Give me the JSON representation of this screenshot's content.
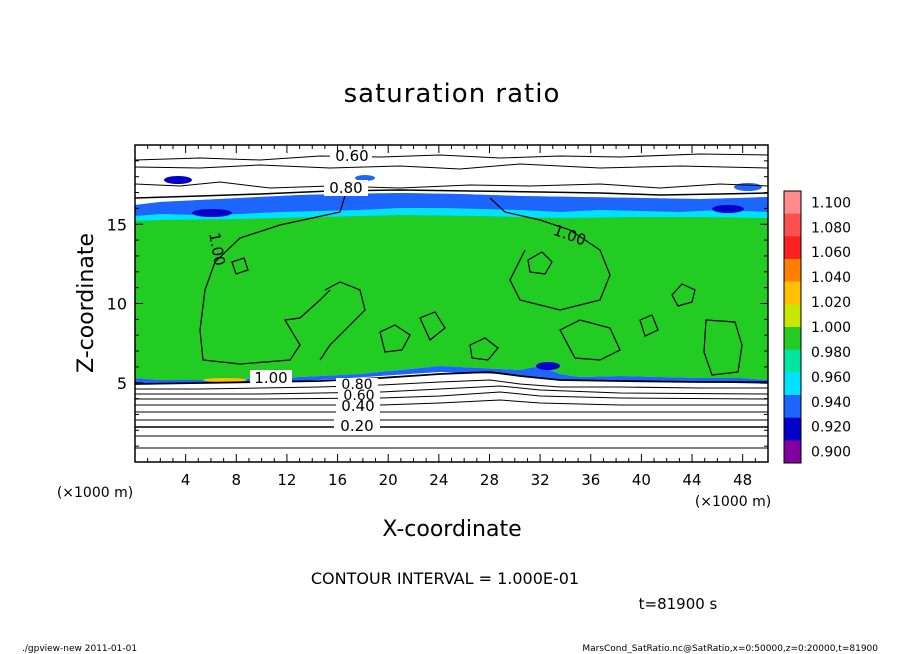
{
  "chart_data": {
    "type": "heatmap",
    "title": "saturation ratio",
    "xlabel": "X-coordinate",
    "ylabel": "Z-coordinate",
    "x_unit": "(×1000 m)",
    "y_unit": "(×1000 m)",
    "xlim": [
      0,
      50
    ],
    "ylim": [
      0,
      20
    ],
    "x_ticks": [
      4,
      8,
      12,
      16,
      20,
      24,
      28,
      32,
      36,
      40,
      44,
      48
    ],
    "y_ticks": [
      5,
      10,
      15
    ],
    "colorbar": {
      "levels": [
        "1.100",
        "1.080",
        "1.060",
        "1.040",
        "1.020",
        "1.000",
        "0.980",
        "0.960",
        "0.940",
        "0.920",
        "0.900"
      ],
      "colors": [
        "#ff8c8c",
        "#ff5050",
        "#ff2020",
        "#ff8000",
        "#ffc000",
        "#c8e600",
        "#22cc22",
        "#00e6a0",
        "#00e0ff",
        "#1e64ff",
        "#0000c8",
        "#8000a0"
      ]
    },
    "contour_labels": [
      "0.60",
      "0.80",
      "1.00",
      "1.00",
      "1.00",
      "0.80",
      "0.60",
      "0.40",
      "0.20"
    ],
    "contour_interval_text": "CONTOUR INTERVAL = 1.000E-01",
    "time_text": "t=81900 s",
    "footer_left": "./gpview-new   2011-01-01",
    "footer_right": "MarsCond_SatRatio.nc@SatRatio,x=0:50000,z=0:20000,t=81900"
  }
}
